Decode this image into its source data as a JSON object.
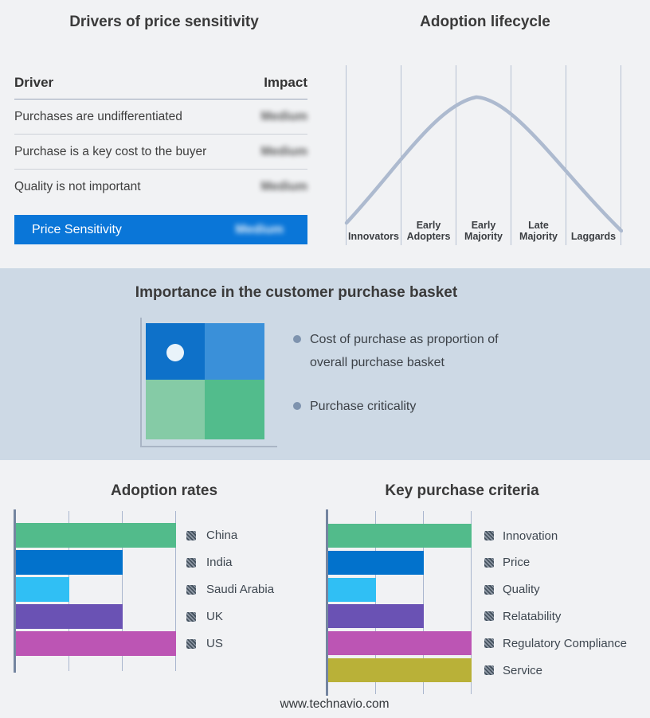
{
  "footer": {
    "site": "www.technavio.com"
  },
  "drivers_table": {
    "title": "Drivers of price sensitivity",
    "col_driver": "Driver",
    "col_impact": "Impact",
    "rows": [
      {
        "driver": "Purchases are undifferentiated",
        "impact": "Medium",
        "redacted": true
      },
      {
        "driver": "Purchase is a key cost to the buyer",
        "impact": "Medium",
        "redacted": true
      },
      {
        "driver": "Quality is not important",
        "impact": "Medium",
        "redacted": true
      }
    ],
    "highlight": {
      "driver": "Price Sensitivity",
      "impact": "Medium",
      "redacted": true
    },
    "highlight_color": "#0a76d8"
  },
  "basket": {
    "title": "Importance in the customer purchase basket",
    "background": "#cdd9e5",
    "bullets": [
      "Cost of purchase as proportion of overall purchase basket",
      "Purchase criticality"
    ],
    "quadrant": {
      "top_left": "#0e71c9",
      "top_right": "#3a90d9",
      "bottom_left": "#85cba6",
      "bottom_right": "#52bc8c",
      "marker": "white-circle-in-top-left"
    }
  },
  "chart_data": [
    {
      "type": "bar",
      "orientation": "horizontal",
      "title": "Adoption rates",
      "categories": [
        "China",
        "India",
        "Saudi Arabia",
        "UK",
        "US"
      ],
      "values": [
        3,
        2,
        1,
        2,
        3
      ],
      "value_note": "relative units read from gridlines; no numeric axis labels shown",
      "xlim": [
        0,
        3
      ],
      "colors": [
        "#52bb8b",
        "#0272cc",
        "#30bff4",
        "#6a52b4",
        "#bc55b4"
      ],
      "grid": true,
      "legend_position": "right",
      "legend_swatch": "hatched-gray-square"
    },
    {
      "type": "bar",
      "orientation": "horizontal",
      "title": "Key purchase criteria",
      "categories": [
        "Innovation",
        "Price",
        "Quality",
        "Relatability",
        "Regulatory Compliance",
        "Service"
      ],
      "values": [
        3,
        2,
        1,
        2,
        3,
        3
      ],
      "value_note": "relative units read from gridlines; no numeric axis labels shown",
      "xlim": [
        0,
        3
      ],
      "colors": [
        "#52bb8b",
        "#0272cc",
        "#30bff4",
        "#6a52b4",
        "#bc55b4",
        "#b9b138"
      ],
      "grid": true,
      "legend_position": "right",
      "legend_swatch": "hatched-gray-square"
    },
    {
      "type": "line",
      "title": "Adoption lifecycle",
      "stages": [
        "Innovators",
        "Early Adopters",
        "Early Majority",
        "Late Majority",
        "Laggards"
      ],
      "shape": "bell curve rising from Innovators, peaking in Early Majority, falling through Laggards",
      "curve_color": "#adbacf",
      "gridline_color": "#b6c1d3",
      "y_axis": "none",
      "grid": "vertical stage separators"
    }
  ]
}
